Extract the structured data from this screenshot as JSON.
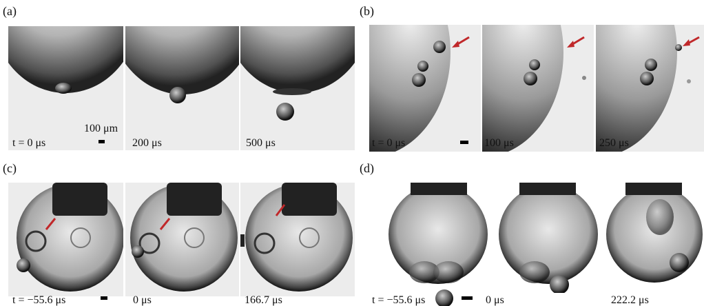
{
  "panels": [
    {
      "label": "(a)",
      "frames": [
        "t = 0 μs",
        "200 μs",
        "500 μs"
      ],
      "scale_bar": "100 μm"
    },
    {
      "label": "(b)",
      "frames": [
        "t = 0 μs",
        "100 μs",
        "250 μs"
      ]
    },
    {
      "label": "(c)",
      "frames": [
        "t = −55.6 μs",
        "0 μs",
        "166.7 μs"
      ]
    },
    {
      "label": "(d)",
      "frames": [
        "t = −55.6 μs",
        "0 μs",
        "222.2 μs"
      ]
    }
  ]
}
